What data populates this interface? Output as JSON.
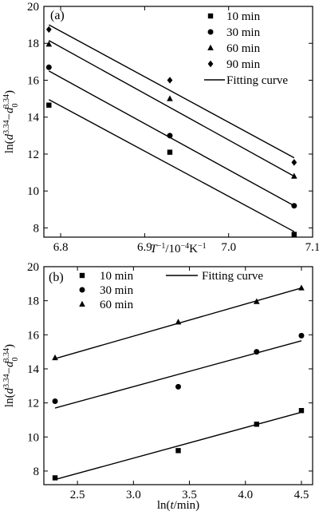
{
  "chart_data": [
    {
      "type": "scatter",
      "panel_label": "(a)",
      "xlabel_parts": {
        "var": "T",
        "sup1": "−1",
        "mid": "/10",
        "sup2": "−4",
        "unit": "K",
        "sup3": "−1"
      },
      "ylabel_parts": {
        "pre": "ln(",
        "var1": "d",
        "sup1": "3.34",
        "minus": "−",
        "var2": "d",
        "sub2": "0",
        "sup2": "3.34",
        "post": ")"
      },
      "xlim": [
        6.78,
        7.1
      ],
      "ylim": [
        7.5,
        20
      ],
      "xticks": [
        6.8,
        6.9,
        7.0,
        7.1
      ],
      "xtick_labels": [
        "6.8",
        "6.9",
        "7.0",
        "7.1"
      ],
      "yticks": [
        8,
        10,
        12,
        14,
        16,
        18,
        20
      ],
      "ytick_labels": [
        "8",
        "10",
        "12",
        "14",
        "16",
        "18",
        "20"
      ],
      "legend_position": "top-right",
      "fit_legend": "Fitting curve",
      "series": [
        {
          "name": "10 min",
          "marker": "square",
          "x": [
            6.786,
            6.93,
            7.078
          ],
          "y": [
            14.65,
            12.1,
            7.65
          ],
          "fit": [
            [
              6.786,
              14.95
            ],
            [
              7.078,
              7.8
            ]
          ]
        },
        {
          "name": "30 min",
          "marker": "circle",
          "x": [
            6.786,
            6.93,
            7.078
          ],
          "y": [
            16.7,
            13.0,
            9.2
          ],
          "fit": [
            [
              6.786,
              16.5
            ],
            [
              7.078,
              9.2
            ]
          ]
        },
        {
          "name": "60 min",
          "marker": "triangle",
          "x": [
            6.786,
            6.93,
            7.078
          ],
          "y": [
            17.95,
            15.0,
            10.8
          ],
          "fit": [
            [
              6.786,
              18.15
            ],
            [
              7.078,
              10.8
            ]
          ]
        },
        {
          "name": "90 min",
          "marker": "diamond",
          "x": [
            6.786,
            6.93,
            7.078
          ],
          "y": [
            18.75,
            16.0,
            11.55
          ],
          "fit": [
            [
              6.786,
              19.0
            ],
            [
              7.078,
              11.8
            ]
          ]
        }
      ]
    },
    {
      "type": "scatter",
      "panel_label": "(b)",
      "xlabel_parts": {
        "pre": "ln(",
        "var": "t",
        "post": "/min)"
      },
      "ylabel_parts": {
        "pre": "ln(",
        "var1": "d",
        "sup1": "3.34",
        "minus": "−",
        "var2": "d",
        "sub2": "0",
        "sup2": "3.34",
        "post": ")"
      },
      "xlim": [
        2.2,
        4.6
      ],
      "ylim": [
        7.2,
        20
      ],
      "xticks": [
        2.5,
        3.0,
        3.5,
        4.0,
        4.5
      ],
      "xtick_labels": [
        "2.5",
        "3.0",
        "3.5",
        "4.0",
        "4.5"
      ],
      "yticks": [
        8,
        10,
        12,
        14,
        16,
        18,
        20
      ],
      "ytick_labels": [
        "8",
        "10",
        "12",
        "14",
        "16",
        "18",
        "20"
      ],
      "legend_position": "top-left",
      "fit_legend": "Fitting curve",
      "series": [
        {
          "name": "10 min",
          "marker": "square",
          "x": [
            2.3,
            3.4,
            4.1,
            4.5
          ],
          "y": [
            7.6,
            9.2,
            10.75,
            11.55
          ],
          "fit": [
            [
              2.3,
              7.5
            ],
            [
              4.5,
              11.45
            ]
          ]
        },
        {
          "name": "30 min",
          "marker": "circle",
          "x": [
            2.3,
            3.4,
            4.1,
            4.5
          ],
          "y": [
            12.1,
            12.95,
            15.0,
            15.95
          ],
          "fit": [
            [
              2.3,
              11.7
            ],
            [
              4.5,
              15.65
            ]
          ]
        },
        {
          "name": "60 min",
          "marker": "triangle",
          "x": [
            2.3,
            3.4,
            4.1,
            4.5
          ],
          "y": [
            14.65,
            16.75,
            17.95,
            18.75
          ],
          "fit": [
            [
              2.3,
              14.6
            ],
            [
              4.5,
              18.75
            ]
          ]
        }
      ]
    }
  ]
}
